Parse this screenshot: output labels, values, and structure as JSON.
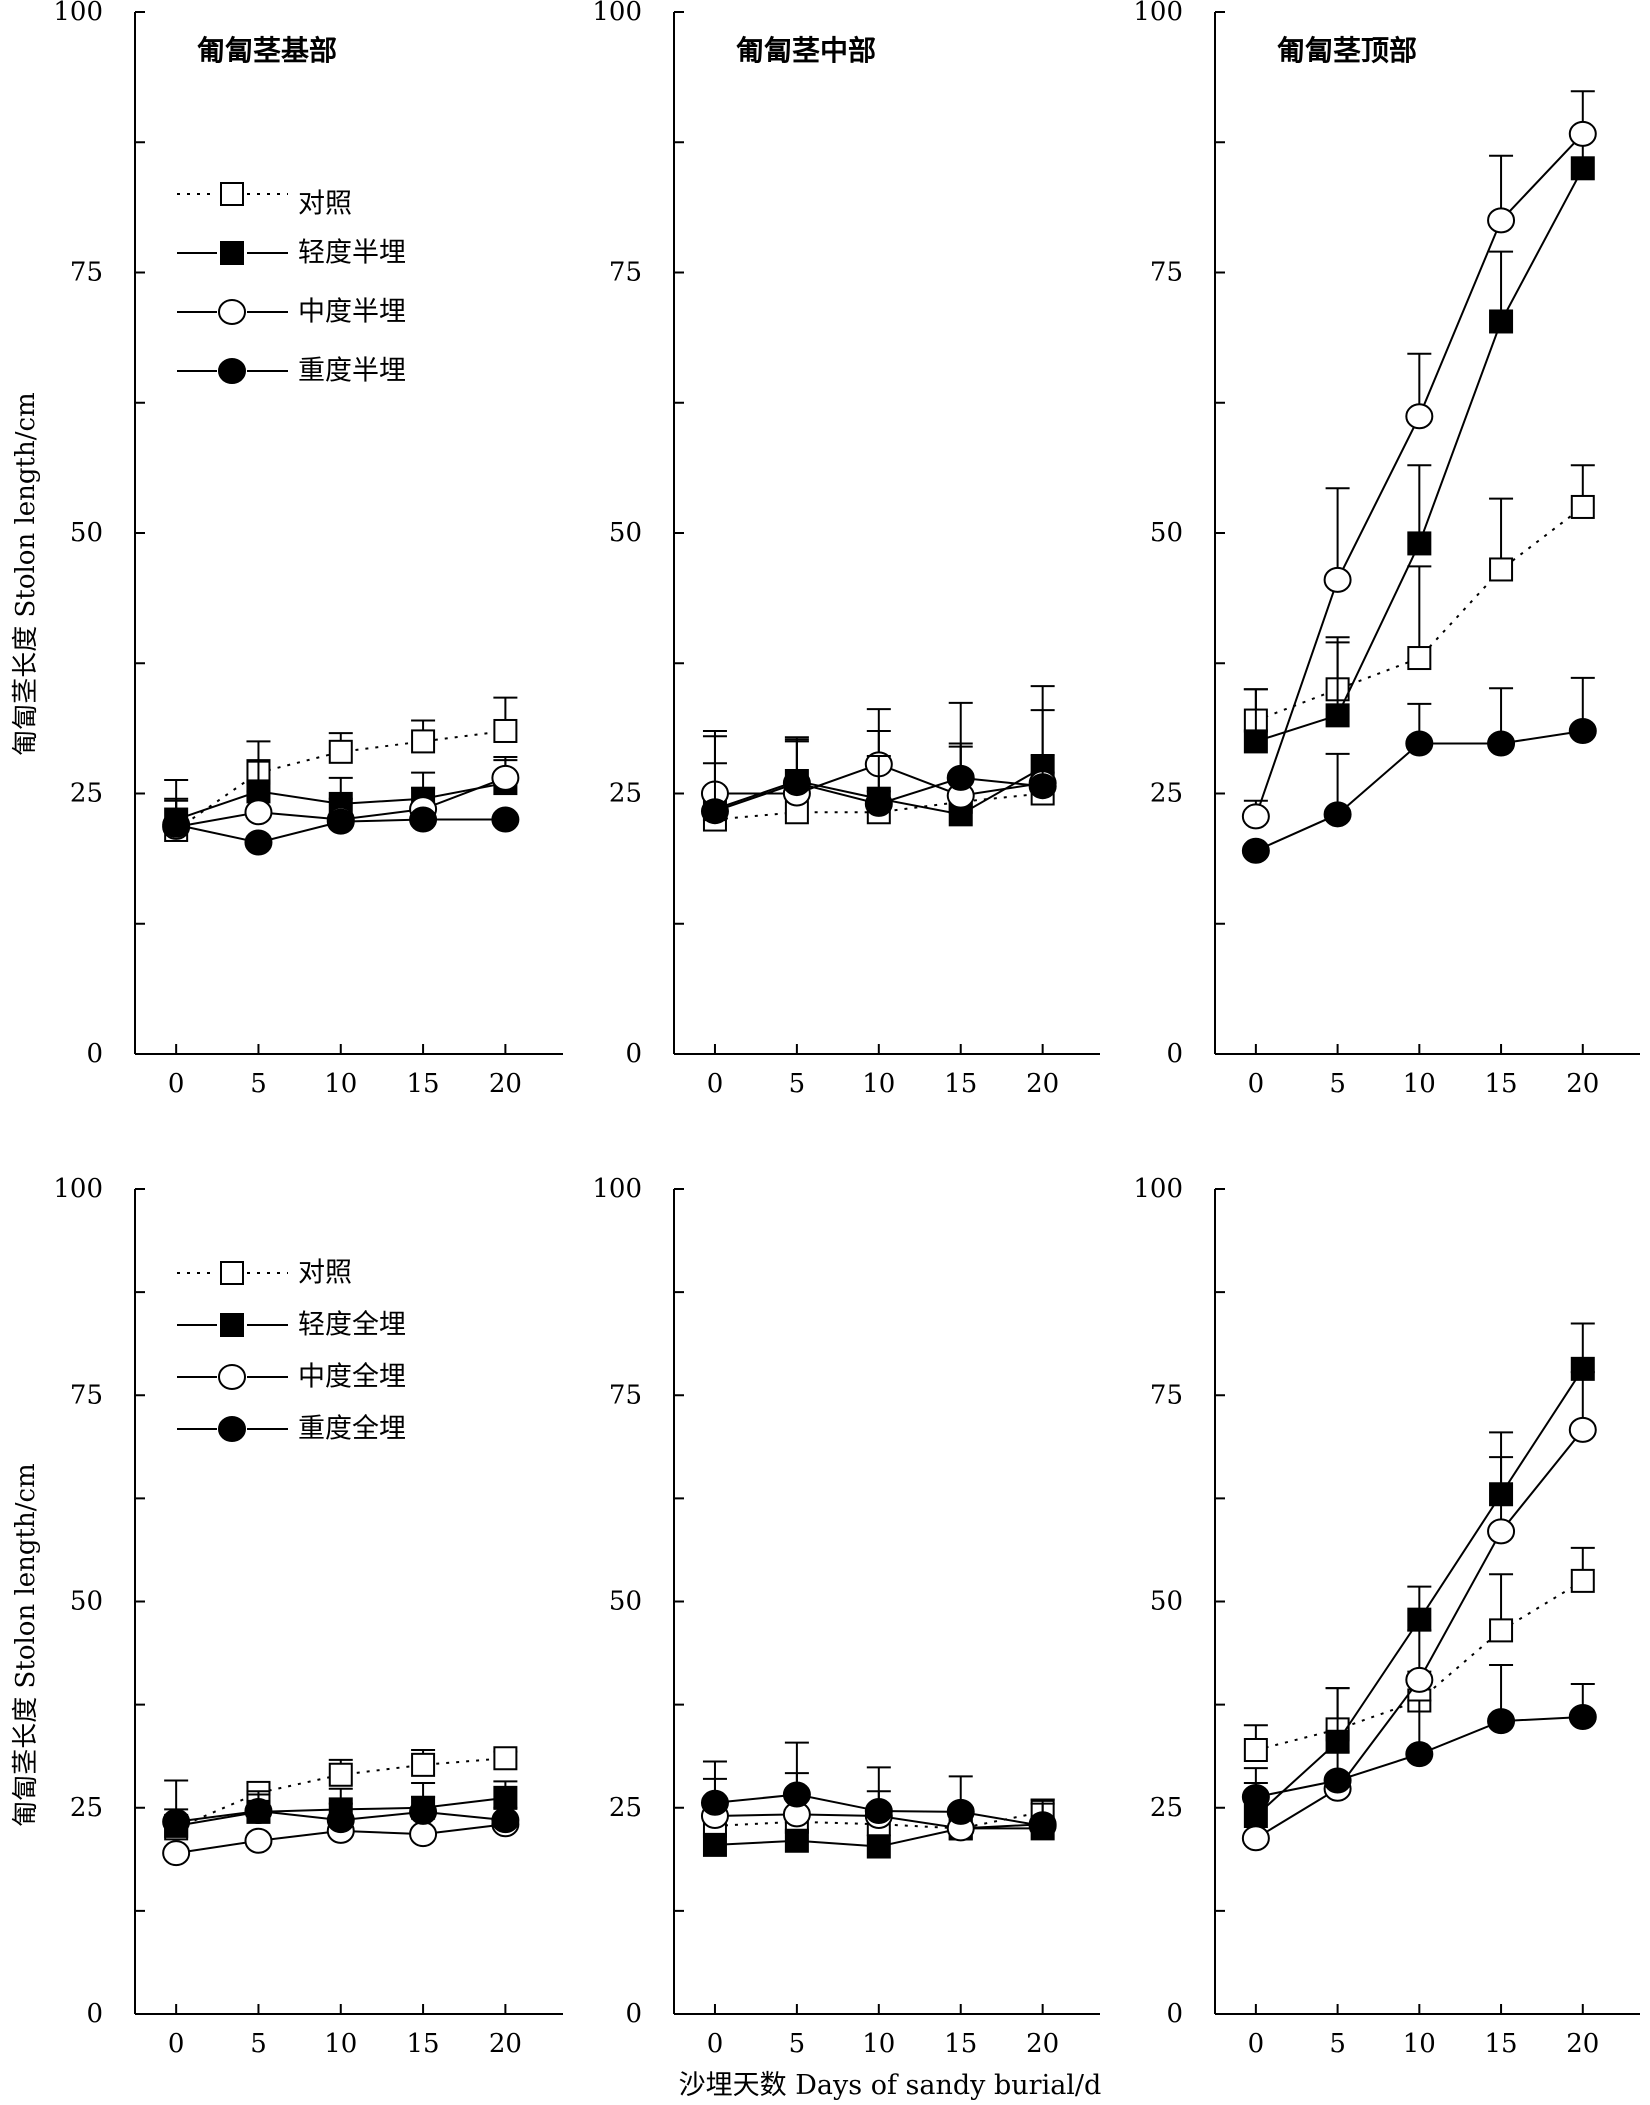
{
  "figure": {
    "xlabel": "沙埋天数 Days of sandy burial/d",
    "ylabel": "匍匐茎长度 Stolon length/cm"
  },
  "panel_titles": [
    "匍匐茎基部",
    "匍匐茎中部",
    "匍匐茎顶部"
  ],
  "legends": [
    [
      "对照",
      "轻度半埋",
      "中度半埋",
      "重度半埋"
    ],
    [
      "对照",
      "轻度全埋",
      "中度全埋",
      "重度全埋"
    ]
  ],
  "chart_data": [
    {
      "type": "line",
      "row": 0,
      "col": 0,
      "title": "匍匐茎基部",
      "x": [
        0,
        5,
        10,
        15,
        20
      ],
      "xticks": [
        "0",
        "5",
        "10",
        "15",
        "20"
      ],
      "xlim": [
        -2.5,
        23.5
      ],
      "ylim": [
        0,
        100
      ],
      "yticks": [
        "0",
        "25",
        "50",
        "75",
        "100"
      ],
      "ylabel": "匍匐茎长度 Stolon length/cm",
      "legend": "top-left",
      "series": [
        {
          "name": "对照",
          "marker": "open-square",
          "linestyle": "dotted",
          "values": [
            21.5,
            27,
            29,
            30,
            31
          ],
          "err": [
            3,
            3,
            1.8,
            2,
            3.2
          ]
        },
        {
          "name": "轻度半埋",
          "marker": "filled-square",
          "linestyle": "solid",
          "values": [
            22.5,
            25.2,
            24,
            24.5,
            26
          ],
          "err": [
            3.8,
            3,
            2.5,
            2.5,
            2.2
          ]
        },
        {
          "name": "中度半埋",
          "marker": "open-circle",
          "linestyle": "solid",
          "values": [
            21.8,
            23.2,
            22.5,
            23.5,
            26.5
          ],
          "err": [
            2.5,
            2,
            2,
            2,
            2
          ]
        },
        {
          "name": "重度半埋",
          "marker": "filled-circle",
          "linestyle": "solid",
          "values": [
            22,
            20.3,
            22.3,
            22.5,
            22.5
          ],
          "err": [
            0,
            0,
            0,
            0,
            0
          ]
        }
      ]
    },
    {
      "type": "line",
      "row": 0,
      "col": 1,
      "title": "匍匐茎中部",
      "x": [
        0,
        5,
        10,
        15,
        20
      ],
      "xticks": [
        "0",
        "5",
        "10",
        "15",
        "20"
      ],
      "xlim": [
        -2.5,
        23.5
      ],
      "ylim": [
        0,
        100
      ],
      "yticks": [
        "0",
        "25",
        "50",
        "75",
        "100"
      ],
      "series": [
        {
          "name": "对照",
          "marker": "open-square",
          "linestyle": "dotted",
          "values": [
            22.5,
            23.2,
            23.2,
            24.2,
            25
          ],
          "err": [
            2,
            2,
            2,
            2,
            2
          ]
        },
        {
          "name": "轻度半埋",
          "marker": "filled-square",
          "linestyle": "solid",
          "values": [
            23.5,
            26.2,
            24.5,
            23,
            27.5
          ],
          "err": [
            7,
            4,
            6.5,
            6.5,
            7.8
          ]
        },
        {
          "name": "中度半埋",
          "marker": "open-circle",
          "linestyle": "solid",
          "values": [
            25,
            25,
            27.8,
            24.8,
            26
          ],
          "err": [
            6,
            5,
            5.3,
            5,
            7
          ]
        },
        {
          "name": "重度半埋",
          "marker": "filled-circle",
          "linestyle": "solid",
          "values": [
            23.3,
            26,
            24,
            26.5,
            25.7
          ],
          "err": [
            4.6,
            4.4,
            4.6,
            7.2,
            3
          ]
        }
      ]
    },
    {
      "type": "line",
      "row": 0,
      "col": 2,
      "title": "匍匐茎顶部",
      "x": [
        0,
        5,
        10,
        15,
        20
      ],
      "xticks": [
        "0",
        "5",
        "10",
        "15",
        "20"
      ],
      "xlim": [
        -2.5,
        23.5
      ],
      "ylim": [
        0,
        100
      ],
      "yticks": [
        "0",
        "25",
        "50",
        "75",
        "100"
      ],
      "series": [
        {
          "name": "对照",
          "marker": "open-square",
          "linestyle": "dotted",
          "values": [
            32,
            35,
            38,
            46.5,
            52.5
          ],
          "err": [
            3,
            5,
            8.8,
            6.8,
            4
          ]
        },
        {
          "name": "轻度半埋",
          "marker": "filled-square",
          "linestyle": "solid",
          "values": [
            30,
            32.5,
            49,
            70.3,
            85
          ],
          "err": [
            5,
            7,
            7.5,
            6.7,
            3.5
          ]
        },
        {
          "name": "中度半埋",
          "marker": "open-circle",
          "linestyle": "solid",
          "values": [
            22.8,
            45.5,
            61.2,
            80,
            88.3
          ],
          "err": [
            1.5,
            8.8,
            6,
            6.2,
            4.1
          ]
        },
        {
          "name": "重度半埋",
          "marker": "filled-circle",
          "linestyle": "solid",
          "values": [
            19.5,
            23,
            29.8,
            29.8,
            31
          ],
          "err": [
            0,
            5.8,
            3.8,
            5.3,
            5.1
          ]
        }
      ]
    },
    {
      "type": "line",
      "row": 1,
      "col": 0,
      "x": [
        0,
        5,
        10,
        15,
        20
      ],
      "xticks": [
        "0",
        "5",
        "10",
        "15",
        "20"
      ],
      "xlim": [
        -2.5,
        23.5
      ],
      "ylim": [
        0,
        100
      ],
      "yticks": [
        "0",
        "25",
        "50",
        "75",
        "100"
      ],
      "ylabel": "匍匐茎长度 Stolon length/cm",
      "legend": "top-left",
      "series": [
        {
          "name": "对照",
          "marker": "open-square",
          "linestyle": "dotted",
          "values": [
            22.5,
            26.8,
            29,
            30.2,
            31
          ],
          "err": [
            1.5,
            1.2,
            1.8,
            1.8,
            0.8
          ]
        },
        {
          "name": "轻度全埋",
          "marker": "filled-square",
          "linestyle": "solid",
          "values": [
            22.8,
            24.5,
            24.8,
            25,
            26.2
          ],
          "err": [
            5.5,
            2.5,
            2.5,
            3,
            2
          ]
        },
        {
          "name": "中度全埋",
          "marker": "open-circle",
          "linestyle": "solid",
          "values": [
            19.5,
            21,
            22.2,
            21.8,
            23
          ],
          "err": [
            0,
            0,
            0,
            0,
            0
          ]
        },
        {
          "name": "重度全埋",
          "marker": "filled-circle",
          "linestyle": "solid",
          "values": [
            23.3,
            24.6,
            23.5,
            24.5,
            23.5
          ],
          "err": [
            1.5,
            2,
            2,
            1.8,
            1.5
          ]
        }
      ]
    },
    {
      "type": "line",
      "row": 1,
      "col": 1,
      "x": [
        0,
        5,
        10,
        15,
        20
      ],
      "xticks": [
        "0",
        "5",
        "10",
        "15",
        "20"
      ],
      "xlim": [
        -2.5,
        23.5
      ],
      "ylim": [
        0,
        100
      ],
      "yticks": [
        "0",
        "25",
        "50",
        "75",
        "100"
      ],
      "series": [
        {
          "name": "对照",
          "marker": "open-square",
          "linestyle": "dotted",
          "values": [
            22.8,
            23.3,
            23,
            22.5,
            24.5
          ],
          "err": [
            1.5,
            1.5,
            1.5,
            1.5,
            1.5
          ]
        },
        {
          "name": "轻度全埋",
          "marker": "filled-square",
          "linestyle": "solid",
          "values": [
            20.5,
            21,
            20.3,
            22.5,
            22.5
          ],
          "err": [
            0,
            0,
            0,
            0,
            0
          ]
        },
        {
          "name": "中度全埋",
          "marker": "open-circle",
          "linestyle": "solid",
          "values": [
            24,
            24.2,
            24,
            22.5,
            23
          ],
          "err": [
            4.5,
            5,
            3,
            2,
            2.5
          ]
        },
        {
          "name": "重度全埋",
          "marker": "filled-circle",
          "linestyle": "solid",
          "values": [
            25.6,
            26.6,
            24.6,
            24.5,
            22.8
          ],
          "err": [
            5,
            6.3,
            5.3,
            4.3,
            3.2
          ]
        }
      ]
    },
    {
      "type": "line",
      "row": 1,
      "col": 2,
      "x": [
        0,
        5,
        10,
        15,
        20
      ],
      "xticks": [
        "0",
        "5",
        "10",
        "15",
        "20"
      ],
      "xlim": [
        -2.5,
        23.5
      ],
      "ylim": [
        0,
        100
      ],
      "yticks": [
        "0",
        "25",
        "50",
        "75",
        "100"
      ],
      "series": [
        {
          "name": "对照",
          "marker": "open-square",
          "linestyle": "dotted",
          "values": [
            32,
            34.5,
            38,
            46.5,
            52.5
          ],
          "err": [
            3,
            5,
            3.5,
            6.8,
            4
          ]
        },
        {
          "name": "轻度全埋",
          "marker": "filled-square",
          "linestyle": "solid",
          "values": [
            24,
            33,
            47.8,
            63,
            78.2
          ],
          "err": [
            4,
            6.5,
            4,
            7.5,
            5.5
          ]
        },
        {
          "name": "中度全埋",
          "marker": "open-circle",
          "linestyle": "solid",
          "values": [
            21.3,
            27.3,
            40.5,
            58.5,
            70.8
          ],
          "err": [
            0,
            0,
            6,
            9,
            7
          ]
        },
        {
          "name": "重度全埋",
          "marker": "filled-circle",
          "linestyle": "solid",
          "values": [
            26.3,
            28.3,
            31.5,
            35.5,
            36
          ],
          "err": [
            3.5,
            3.5,
            6.5,
            6.8,
            4
          ]
        }
      ]
    }
  ]
}
